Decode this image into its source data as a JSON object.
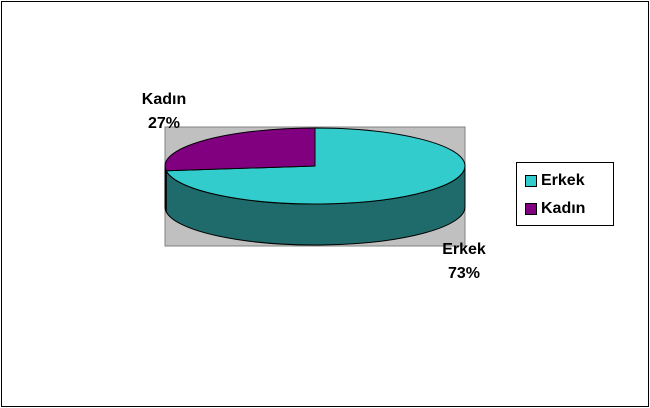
{
  "chart_data": {
    "type": "pie",
    "title": "",
    "categories": [
      "Erkek",
      "Kadın"
    ],
    "values": [
      73,
      27
    ],
    "value_unit": "%",
    "three_d": true,
    "legend_position": "right",
    "colors": [
      "#33CCCC",
      "#800080"
    ],
    "side_colors": [
      "#1f6b6b",
      "#4d004d"
    ],
    "plot_area_color": "#C0C0C0"
  },
  "labels": {
    "kadin_name": "Kadın",
    "kadin_pct": "27%",
    "erkek_name": "Erkek",
    "erkek_pct": "73%"
  },
  "legend": {
    "items": [
      {
        "label": "Erkek",
        "color": "#33CCCC"
      },
      {
        "label": "Kadın",
        "color": "#800080"
      }
    ]
  }
}
